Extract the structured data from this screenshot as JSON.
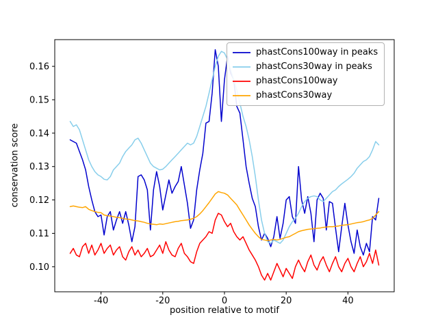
{
  "figure": {
    "background": "#ffffff"
  },
  "chart_data": {
    "type": "line",
    "title": "",
    "xlabel": "position relative to motif",
    "ylabel": "conservation score",
    "xlim": [
      -55,
      55
    ],
    "ylim": [
      0.0925,
      0.168
    ],
    "xticks": [
      -40,
      -20,
      0,
      20,
      40
    ],
    "yticks": [
      0.1,
      0.11,
      0.12,
      0.13,
      0.14,
      0.15,
      0.16
    ],
    "grid": false,
    "legend_position": "upper right",
    "frame_color": "#000000",
    "x": [
      -50,
      -49,
      -48,
      -47,
      -46,
      -45,
      -44,
      -43,
      -42,
      -41,
      -40,
      -39,
      -38,
      -37,
      -36,
      -35,
      -34,
      -33,
      -32,
      -31,
      -30,
      -29,
      -28,
      -27,
      -26,
      -25,
      -24,
      -23,
      -22,
      -21,
      -20,
      -19,
      -18,
      -17,
      -16,
      -15,
      -14,
      -13,
      -12,
      -11,
      -10,
      -9,
      -8,
      -7,
      -6,
      -5,
      -4,
      -3,
      -2,
      -1,
      0,
      1,
      2,
      3,
      4,
      5,
      6,
      7,
      8,
      9,
      10,
      11,
      12,
      13,
      14,
      15,
      16,
      17,
      18,
      19,
      20,
      21,
      22,
      23,
      24,
      25,
      26,
      27,
      28,
      29,
      30,
      31,
      32,
      33,
      34,
      35,
      36,
      37,
      38,
      39,
      40,
      41,
      42,
      43,
      44,
      45,
      46,
      47,
      48,
      49,
      50
    ],
    "series": [
      {
        "name": "phastCons100way in peaks",
        "color": "#0000cd",
        "values": [
          0.138,
          0.1375,
          0.137,
          0.1345,
          0.132,
          0.129,
          0.124,
          0.12,
          0.1165,
          0.115,
          0.1155,
          0.1095,
          0.115,
          0.1165,
          0.111,
          0.114,
          0.1165,
          0.113,
          0.1165,
          0.1125,
          0.1075,
          0.112,
          0.127,
          0.1275,
          0.126,
          0.123,
          0.111,
          0.123,
          0.1285,
          0.124,
          0.117,
          0.1215,
          0.126,
          0.122,
          0.124,
          0.1255,
          0.13,
          0.1245,
          0.119,
          0.1115,
          0.114,
          0.123,
          0.129,
          0.134,
          0.143,
          0.1435,
          0.152,
          0.165,
          0.16,
          0.1435,
          0.156,
          0.163,
          0.158,
          0.156,
          0.148,
          0.146,
          0.138,
          0.13,
          0.125,
          0.1205,
          0.118,
          0.112,
          0.108,
          0.11,
          0.1085,
          0.106,
          0.109,
          0.115,
          0.1085,
          0.113,
          0.12,
          0.121,
          0.115,
          0.113,
          0.13,
          0.12,
          0.116,
          0.121,
          0.116,
          0.1075,
          0.12,
          0.122,
          0.1205,
          0.111,
          0.1195,
          0.119,
          0.1115,
          0.1045,
          0.112,
          0.119,
          0.1125,
          0.1075,
          0.104,
          0.111,
          0.106,
          0.1035,
          0.107,
          0.1045,
          0.115,
          0.114,
          0.1205
        ]
      },
      {
        "name": "phastCons30way in peaks",
        "color": "#87ceeb",
        "values": [
          0.1435,
          0.142,
          0.1425,
          0.141,
          0.138,
          0.135,
          0.132,
          0.13,
          0.1285,
          0.1275,
          0.127,
          0.1262,
          0.126,
          0.127,
          0.129,
          0.13,
          0.131,
          0.133,
          0.1345,
          0.1355,
          0.1365,
          0.138,
          0.1385,
          0.137,
          0.135,
          0.133,
          0.131,
          0.13,
          0.1295,
          0.129,
          0.1292,
          0.13,
          0.131,
          0.132,
          0.133,
          0.134,
          0.135,
          0.136,
          0.137,
          0.1365,
          0.137,
          0.139,
          0.142,
          0.145,
          0.148,
          0.152,
          0.156,
          0.16,
          0.163,
          0.1645,
          0.164,
          0.162,
          0.159,
          0.156,
          0.153,
          0.149,
          0.145,
          0.142,
          0.138,
          0.133,
          0.127,
          0.12,
          0.114,
          0.11,
          0.1075,
          0.107,
          0.108,
          0.1075,
          0.107,
          0.108,
          0.11,
          0.112,
          0.1135,
          0.1145,
          0.116,
          0.118,
          0.1195,
          0.1205,
          0.121,
          0.1212,
          0.121,
          0.12,
          0.1195,
          0.1205,
          0.1215,
          0.1225,
          0.123,
          0.124,
          0.1248,
          0.1255,
          0.1262,
          0.127,
          0.128,
          0.1295,
          0.1305,
          0.1315,
          0.132,
          0.133,
          0.135,
          0.1375,
          0.1365
        ]
      },
      {
        "name": "phastCons100way",
        "color": "#ff0000",
        "values": [
          0.104,
          0.1055,
          0.1035,
          0.103,
          0.106,
          0.107,
          0.104,
          0.1065,
          0.1035,
          0.105,
          0.107,
          0.104,
          0.1055,
          0.1065,
          0.1035,
          0.105,
          0.106,
          0.103,
          0.102,
          0.1045,
          0.106,
          0.1035,
          0.105,
          0.103,
          0.104,
          0.1055,
          0.103,
          0.1035,
          0.105,
          0.1065,
          0.104,
          0.1075,
          0.105,
          0.1035,
          0.103,
          0.1055,
          0.107,
          0.104,
          0.103,
          0.1015,
          0.101,
          0.1045,
          0.107,
          0.108,
          0.109,
          0.1105,
          0.11,
          0.114,
          0.116,
          0.1155,
          0.1135,
          0.112,
          0.113,
          0.1105,
          0.109,
          0.108,
          0.109,
          0.107,
          0.105,
          0.1035,
          0.102,
          0.1,
          0.0975,
          0.096,
          0.098,
          0.096,
          0.0985,
          0.101,
          0.099,
          0.097,
          0.0995,
          0.098,
          0.0965,
          0.1,
          0.102,
          0.1,
          0.0985,
          0.1015,
          0.1035,
          0.1005,
          0.099,
          0.1015,
          0.103,
          0.1005,
          0.0985,
          0.101,
          0.103,
          0.1,
          0.0985,
          0.101,
          0.1025,
          0.1,
          0.0985,
          0.101,
          0.103,
          0.1,
          0.1015,
          0.104,
          0.101,
          0.105,
          0.1005
        ]
      },
      {
        "name": "phastCons30way",
        "color": "#ffa500",
        "values": [
          0.118,
          0.1182,
          0.118,
          0.1178,
          0.1177,
          0.118,
          0.1172,
          0.1168,
          0.1165,
          0.1163,
          0.1162,
          0.1155,
          0.1153,
          0.1152,
          0.115,
          0.1148,
          0.1147,
          0.1145,
          0.1143,
          0.1142,
          0.114,
          0.1138,
          0.1137,
          0.1135,
          0.1133,
          0.113,
          0.1128,
          0.1127,
          0.1126,
          0.1128,
          0.1127,
          0.1129,
          0.1131,
          0.1133,
          0.1135,
          0.1136,
          0.1138,
          0.1139,
          0.114,
          0.1142,
          0.1145,
          0.115,
          0.1158,
          0.1168,
          0.118,
          0.1192,
          0.1205,
          0.1218,
          0.1225,
          0.1222,
          0.122,
          0.1215,
          0.1205,
          0.1195,
          0.1185,
          0.117,
          0.1155,
          0.114,
          0.1125,
          0.1112,
          0.11,
          0.109,
          0.1082,
          0.108,
          0.1078,
          0.108,
          0.1082,
          0.108,
          0.1082,
          0.1085,
          0.1088,
          0.109,
          0.1095,
          0.11,
          0.1105,
          0.1108,
          0.111,
          0.1112,
          0.1113,
          0.1114,
          0.1115,
          0.1116,
          0.1118,
          0.1119,
          0.112,
          0.112,
          0.1121,
          0.1122,
          0.1124,
          0.1125,
          0.1126,
          0.1128,
          0.113,
          0.1132,
          0.1133,
          0.1135,
          0.1138,
          0.114,
          0.1145,
          0.1155,
          0.1165
        ]
      }
    ]
  }
}
